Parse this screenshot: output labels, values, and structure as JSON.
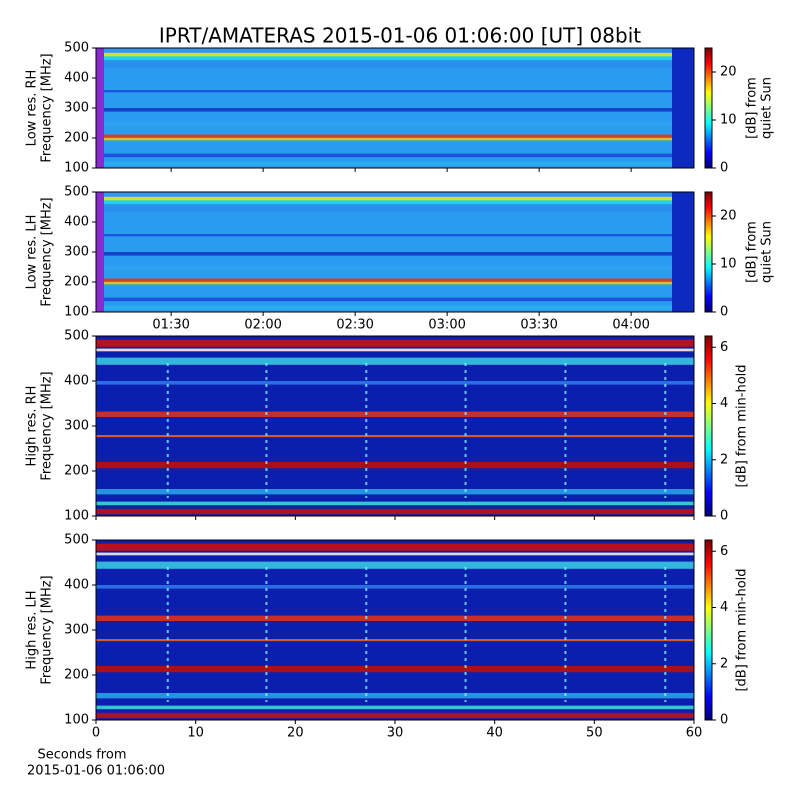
{
  "title": "IPRT/AMATERAS 2015-01-06 01:06:00 [UT]   08bit",
  "chart_data": [
    {
      "type": "spectrogram",
      "ylabel": [
        "Low res. RH",
        "Frequency [MHz]"
      ],
      "ylim": [
        100,
        500
      ],
      "yticks": [
        100,
        200,
        300,
        400,
        500
      ],
      "xlim": [
        65.5,
        260.5
      ],
      "xticks": [
        {
          "value": 90,
          "label": "01:30"
        },
        {
          "value": 120,
          "label": "02:00"
        },
        {
          "value": 150,
          "label": "02:30"
        },
        {
          "value": 180,
          "label": "03:00"
        },
        {
          "value": 210,
          "label": "03:30"
        },
        {
          "value": 240,
          "label": "04:00"
        }
      ],
      "show_xticklabels": false,
      "colorbar": {
        "label": [
          "[dB] from",
          "quiet Sun"
        ],
        "lim": [
          0,
          25
        ],
        "ticks": [
          0,
          10,
          20
        ],
        "colormap": "jet"
      }
    },
    {
      "type": "spectrogram",
      "ylabel": [
        "Low res. LH",
        "Frequency [MHz]"
      ],
      "ylim": [
        100,
        500
      ],
      "yticks": [
        100,
        200,
        300,
        400,
        500
      ],
      "xlim": [
        65.5,
        260.5
      ],
      "xticks": [
        {
          "value": 90,
          "label": "01:30"
        },
        {
          "value": 120,
          "label": "02:00"
        },
        {
          "value": 150,
          "label": "02:30"
        },
        {
          "value": 180,
          "label": "03:00"
        },
        {
          "value": 210,
          "label": "03:30"
        },
        {
          "value": 240,
          "label": "04:00"
        }
      ],
      "show_xticklabels": true,
      "colorbar": {
        "label": [
          "[dB] from",
          "quiet Sun"
        ],
        "lim": [
          0,
          25
        ],
        "ticks": [
          0,
          10,
          20
        ],
        "colormap": "jet"
      }
    },
    {
      "type": "spectrogram",
      "ylabel": [
        "High res. RH",
        "Frequency [MHz]"
      ],
      "ylim": [
        100,
        500
      ],
      "yticks": [
        100,
        200,
        300,
        400,
        500
      ],
      "xlim": [
        0,
        60
      ],
      "xticks": [
        0,
        10,
        20,
        30,
        40,
        50,
        60
      ],
      "show_xticklabels": false,
      "colorbar": {
        "label": [
          "[dB] from min-hold"
        ],
        "lim": [
          0,
          6.4
        ],
        "ticks": [
          0,
          2,
          4,
          6
        ],
        "colormap": "jet"
      }
    },
    {
      "type": "spectrogram",
      "ylabel": [
        "High res. LH",
        "Frequency [MHz]"
      ],
      "ylim": [
        100,
        500
      ],
      "yticks": [
        100,
        200,
        300,
        400,
        500
      ],
      "xlim": [
        0,
        60
      ],
      "xticks": [
        0,
        10,
        20,
        30,
        40,
        50,
        60
      ],
      "show_xticklabels": true,
      "xlabel": [
        "Seconds from",
        "2015-01-06 01:06:00"
      ],
      "colorbar": {
        "label": [
          "[dB] from min-hold"
        ],
        "lim": [
          0,
          6.4
        ],
        "ticks": [
          0,
          2,
          4,
          6
        ],
        "colormap": "jet"
      }
    }
  ]
}
